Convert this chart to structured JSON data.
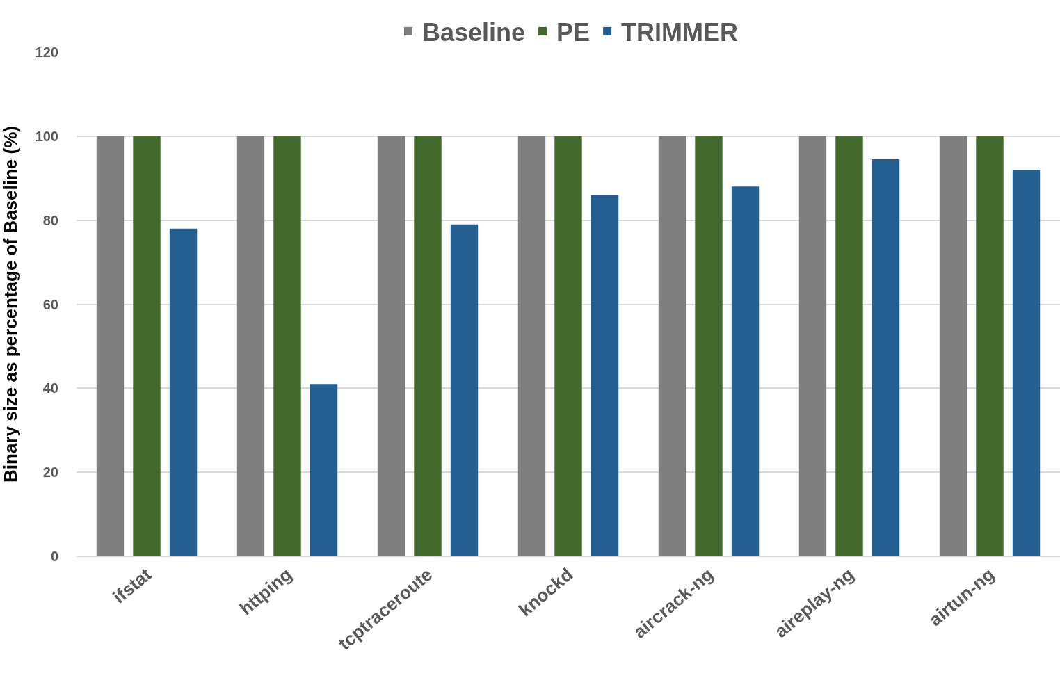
{
  "chart_data": {
    "type": "bar",
    "ylabel": "Binary size as percentage of Baseline (%)",
    "categories": [
      "ifstat",
      "httping",
      "tcptraceroute",
      "knockd",
      "aircrack-ng",
      "aireplay-ng",
      "airtun-ng"
    ],
    "series": [
      {
        "name": "Baseline",
        "color": "#7f7f7f",
        "values": [
          100,
          100,
          100,
          100,
          100,
          100,
          100
        ]
      },
      {
        "name": "PE",
        "color": "#43682b",
        "values": [
          100,
          100,
          100,
          100,
          100,
          100,
          100
        ]
      },
      {
        "name": "TRIMMER",
        "color": "#255e91",
        "values": [
          78,
          41,
          79,
          86,
          88,
          94.5,
          92
        ]
      }
    ],
    "ylim": [
      0,
      120
    ],
    "yticks": [
      0,
      20,
      40,
      60,
      80,
      100,
      120
    ],
    "grid": "y",
    "legend": "top"
  }
}
